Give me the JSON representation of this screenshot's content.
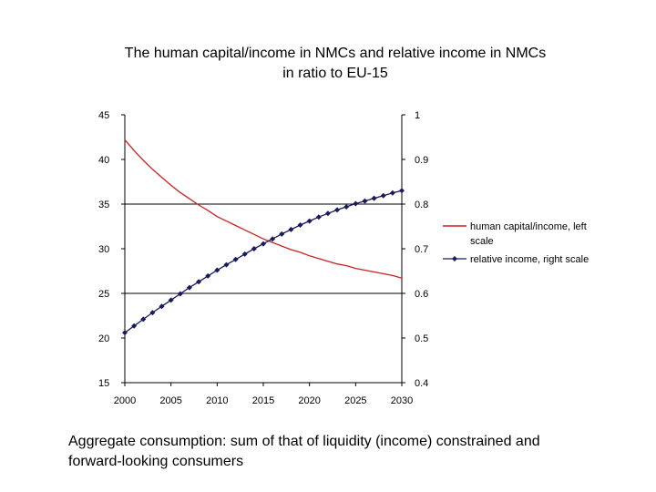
{
  "title_line1": "The human capital/income in NMCs and relative income in NMCs",
  "title_line2": "in ratio to EU-15",
  "caption_line1": "Aggregate consumption: sum of that of liquidity (income) constrained and",
  "caption_line2": "forward-looking consumers",
  "chart_data": {
    "type": "line",
    "title": "The human capital/income in NMCs and relative income in NMCs in ratio to EU-15",
    "x": [
      2000,
      2001,
      2002,
      2003,
      2004,
      2005,
      2006,
      2007,
      2008,
      2009,
      2010,
      2011,
      2012,
      2013,
      2014,
      2015,
      2016,
      2017,
      2018,
      2019,
      2020,
      2021,
      2022,
      2023,
      2024,
      2025,
      2026,
      2027,
      2028,
      2029,
      2030
    ],
    "x_ticks": [
      "2000",
      "2005",
      "2010",
      "2015",
      "2020",
      "2025",
      "2030"
    ],
    "y_left": {
      "min": 15,
      "max": 45,
      "ticks": [
        "45",
        "40",
        "35",
        "30",
        "25",
        "20",
        "15"
      ]
    },
    "y_right": {
      "min": 0.4,
      "max": 1,
      "ticks": [
        "1",
        "0.9",
        "0.8",
        "0.7",
        "0.6",
        "0.5",
        "0.4"
      ]
    },
    "gridlines": [
      35,
      25
    ],
    "series": [
      {
        "name": "human capital/income, left scale",
        "axis": "left",
        "color": "#cc2222",
        "values": [
          42.2,
          41.0,
          39.9,
          38.9,
          38.0,
          37.1,
          36.3,
          35.6,
          34.9,
          34.3,
          33.6,
          33.1,
          32.6,
          32.1,
          31.6,
          31.1,
          30.7,
          30.3,
          29.9,
          29.6,
          29.2,
          28.9,
          28.6,
          28.3,
          28.1,
          27.8,
          27.6,
          27.4,
          27.2,
          27.0,
          26.7
        ]
      },
      {
        "name": "relative income, right scale",
        "axis": "right",
        "color": "#1a1a5e",
        "values": [
          0.512,
          0.527,
          0.542,
          0.557,
          0.571,
          0.585,
          0.599,
          0.613,
          0.626,
          0.639,
          0.652,
          0.664,
          0.676,
          0.688,
          0.7,
          0.711,
          0.722,
          0.733,
          0.743,
          0.753,
          0.762,
          0.771,
          0.779,
          0.787,
          0.794,
          0.801,
          0.807,
          0.813,
          0.819,
          0.825,
          0.83
        ]
      }
    ],
    "legend": {
      "placement": "right",
      "items": [
        {
          "line1": "human capital/income, left",
          "line2": "scale"
        },
        {
          "line1": "relative income, right scale"
        }
      ]
    }
  }
}
